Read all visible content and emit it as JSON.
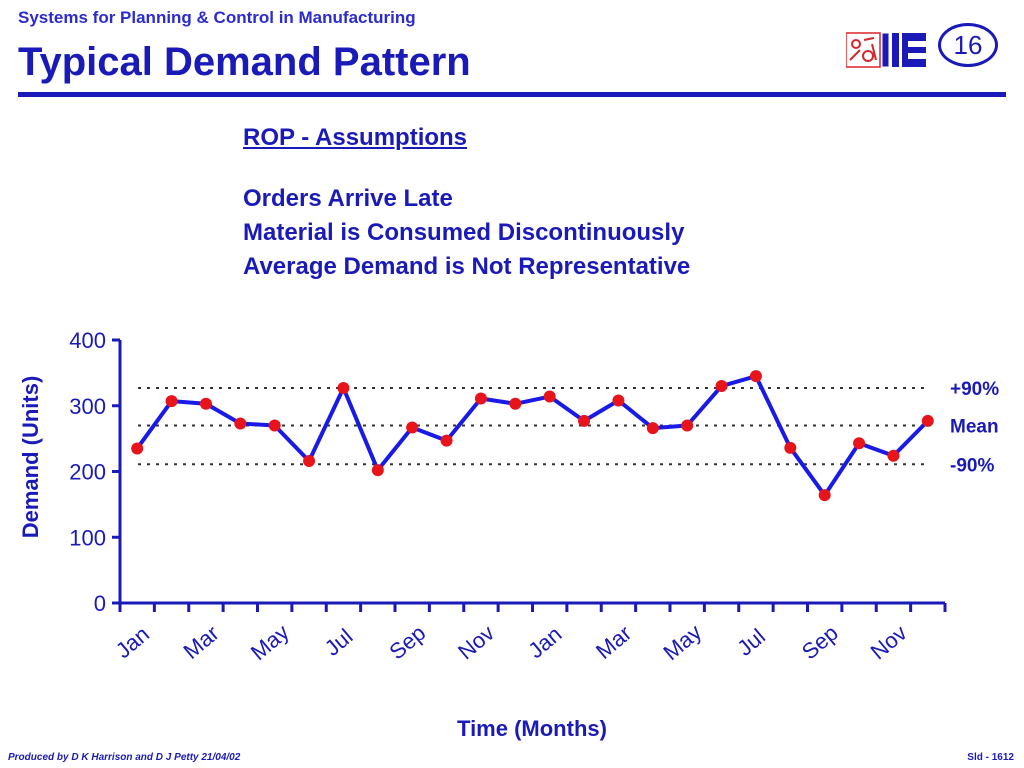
{
  "header": {
    "subtitle": "Systems for Planning & Control in Manufacturing",
    "title": "Typical Demand Pattern",
    "slide_number": "16"
  },
  "assumptions": {
    "heading": "ROP - Assumptions",
    "lines": [
      "Orders Arrive Late",
      "Material is Consumed Discontinuously",
      "Average Demand is Not Representative"
    ]
  },
  "footer": {
    "credit": "Produced by D K Harrison and D J Petty 21/04/02",
    "slide_ref": "Sld - 1612"
  },
  "colors": {
    "primary": "#1a1ab8",
    "line": "#1a1ae6",
    "marker": "#e8141c",
    "logo_red": "#d8262a"
  },
  "chart_data": {
    "type": "line",
    "xlabel": "Time (Months)",
    "ylabel": "Demand (Units)",
    "ylim": [
      0,
      400
    ],
    "yticks": [
      0,
      100,
      200,
      300,
      400
    ],
    "tick_labels": [
      "Jan",
      "Mar",
      "May",
      "Jul",
      "Sep",
      "Nov",
      "Jan",
      "Mar",
      "May",
      "Jul",
      "Sep",
      "Nov"
    ],
    "values": [
      235,
      307,
      303,
      273,
      270,
      216,
      327,
      202,
      267,
      247,
      311,
      303,
      314,
      277,
      308,
      266,
      270,
      330,
      345,
      236,
      164,
      243,
      224,
      277
    ],
    "reference_lines": [
      {
        "label": "+90%",
        "value": 327
      },
      {
        "label": "Mean",
        "value": 270
      },
      {
        "label": "-90%",
        "value": 211
      }
    ],
    "grid": false
  }
}
